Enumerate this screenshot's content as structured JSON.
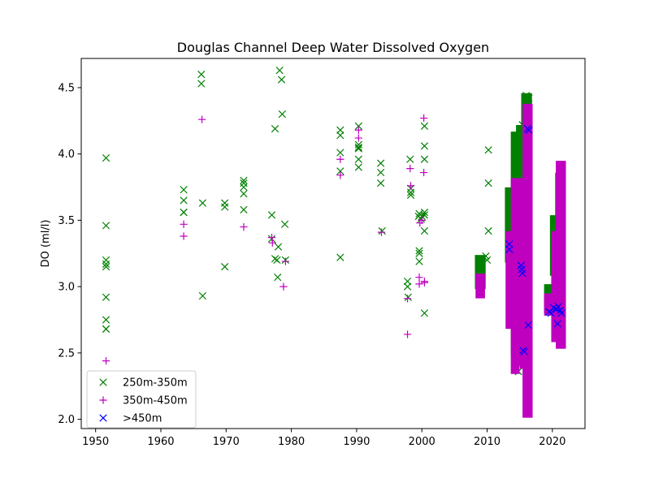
{
  "chart_data": {
    "type": "scatter",
    "title": "Douglas Channel Deep Water Dissolved Oxygen",
    "xlabel": "",
    "ylabel": "DO (ml/l)",
    "xlim": [
      1947.8,
      2025.0
    ],
    "ylim": [
      1.93,
      4.72
    ],
    "xticks": [
      1950,
      1960,
      1970,
      1980,
      1990,
      2000,
      2010,
      2020
    ],
    "yticks": [
      2.0,
      2.5,
      3.0,
      3.5,
      4.0,
      4.5
    ],
    "grid": false,
    "legend_position": "lower-left",
    "series": [
      {
        "name": "250m-350m",
        "marker": "x",
        "color": "#008000",
        "points": [
          [
            1951.6,
            3.97
          ],
          [
            1951.6,
            3.46
          ],
          [
            1951.6,
            3.2
          ],
          [
            1951.6,
            3.17
          ],
          [
            1951.6,
            3.15
          ],
          [
            1951.6,
            2.92
          ],
          [
            1951.6,
            2.75
          ],
          [
            1951.6,
            2.68
          ],
          [
            1951.6,
            2.68
          ],
          [
            1963.5,
            3.73
          ],
          [
            1963.5,
            3.65
          ],
          [
            1963.5,
            3.56
          ],
          [
            1963.5,
            3.56
          ],
          [
            1966.2,
            4.6
          ],
          [
            1966.2,
            4.53
          ],
          [
            1966.4,
            3.63
          ],
          [
            1966.4,
            2.93
          ],
          [
            1969.8,
            3.63
          ],
          [
            1969.8,
            3.6
          ],
          [
            1969.8,
            3.15
          ],
          [
            1972.7,
            3.8
          ],
          [
            1972.7,
            3.78
          ],
          [
            1972.7,
            3.75
          ],
          [
            1972.7,
            3.7
          ],
          [
            1972.7,
            3.58
          ],
          [
            1977.0,
            3.54
          ],
          [
            1977.0,
            3.36
          ],
          [
            1977.5,
            4.19
          ],
          [
            1977.5,
            3.21
          ],
          [
            1977.8,
            3.2
          ],
          [
            1977.9,
            3.07
          ],
          [
            1978.0,
            3.3
          ],
          [
            1978.2,
            4.63
          ],
          [
            1978.5,
            4.56
          ],
          [
            1978.6,
            4.3
          ],
          [
            1979.0,
            3.47
          ],
          [
            1979.1,
            3.2
          ],
          [
            1987.5,
            4.18
          ],
          [
            1987.5,
            4.14
          ],
          [
            1987.5,
            4.01
          ],
          [
            1987.5,
            3.87
          ],
          [
            1987.5,
            3.22
          ],
          [
            1990.3,
            4.21
          ],
          [
            1990.3,
            4.07
          ],
          [
            1990.3,
            4.05
          ],
          [
            1990.3,
            4.04
          ],
          [
            1990.3,
            3.96
          ],
          [
            1990.3,
            3.9
          ],
          [
            1993.7,
            3.93
          ],
          [
            1993.7,
            3.86
          ],
          [
            1993.7,
            3.78
          ],
          [
            1993.9,
            3.42
          ],
          [
            1997.8,
            3.04
          ],
          [
            1997.8,
            3.0
          ],
          [
            1997.9,
            2.92
          ],
          [
            1998.2,
            3.96
          ],
          [
            1998.3,
            3.74
          ],
          [
            1998.3,
            3.71
          ],
          [
            1998.3,
            3.69
          ],
          [
            1999.5,
            3.53
          ],
          [
            1999.6,
            3.55
          ],
          [
            1999.6,
            3.27
          ],
          [
            1999.6,
            3.25
          ],
          [
            1999.6,
            3.19
          ],
          [
            1999.9,
            3.51
          ],
          [
            2000.0,
            3.53
          ],
          [
            2000.4,
            3.56
          ],
          [
            2000.4,
            3.54
          ],
          [
            2000.4,
            4.21
          ],
          [
            2000.4,
            4.06
          ],
          [
            2000.4,
            3.96
          ],
          [
            2000.4,
            3.42
          ],
          [
            2000.4,
            2.8
          ],
          [
            2010.2,
            4.03
          ],
          [
            2010.2,
            3.78
          ],
          [
            2010.2,
            3.42
          ],
          [
            2009.8,
            3.23
          ],
          [
            2010.0,
            3.2
          ],
          [
            2015.0,
            4.15
          ],
          [
            2015.4,
            4.22
          ],
          [
            2016.0,
            4.44
          ],
          [
            2016.4,
            4.42
          ],
          [
            2014.8,
            2.36
          ],
          [
            2021.5,
            3.84
          ],
          [
            2021.2,
            3.55
          ]
        ],
        "ranges": [
          {
            "x": [
              2008.5,
              2009.4
            ],
            "y": [
              3.0,
              3.22
            ]
          },
          {
            "x": [
              2013.1,
              2013.7
            ],
            "y": [
              3.2,
              3.73
            ]
          },
          {
            "x": [
              2014.0,
              2014.7
            ],
            "y": [
              2.5,
              4.15
            ]
          },
          {
            "x": [
              2014.8,
              2015.4
            ],
            "y": [
              2.56,
              4.2
            ]
          },
          {
            "x": [
              2015.6,
              2016.5
            ],
            "y": [
              2.6,
              4.44
            ]
          },
          {
            "x": [
              2019.1,
              2019.9
            ],
            "y": [
              2.82,
              3.0
            ]
          },
          {
            "x": [
              2020.0,
              2020.7
            ],
            "y": [
              3.1,
              3.52
            ]
          },
          {
            "x": [
              2020.8,
              2021.7
            ],
            "y": [
              2.68,
              3.84
            ]
          }
        ]
      },
      {
        "name": "350m-450m",
        "marker": "+",
        "color": "#bf00bf",
        "points": [
          [
            1951.6,
            2.44
          ],
          [
            1963.5,
            3.47
          ],
          [
            1963.5,
            3.38
          ],
          [
            1966.3,
            4.26
          ],
          [
            1972.7,
            3.45
          ],
          [
            1977.0,
            3.37
          ],
          [
            1977.1,
            3.33
          ],
          [
            1978.8,
            3.0
          ],
          [
            1979.1,
            3.19
          ],
          [
            1987.5,
            3.96
          ],
          [
            1987.5,
            3.84
          ],
          [
            1990.3,
            4.18
          ],
          [
            1990.3,
            4.12
          ],
          [
            1993.8,
            3.41
          ],
          [
            1997.8,
            2.64
          ],
          [
            1997.8,
            2.91
          ],
          [
            1998.2,
            3.89
          ],
          [
            1998.3,
            3.76
          ],
          [
            1999.6,
            3.07
          ],
          [
            1999.6,
            3.02
          ],
          [
            1999.7,
            3.48
          ],
          [
            2000.3,
            4.27
          ],
          [
            2000.3,
            3.86
          ],
          [
            2000.4,
            3.04
          ],
          [
            2000.4,
            3.03
          ],
          [
            2000.0,
            3.5
          ]
        ],
        "ranges": [
          {
            "x": [
              2008.6,
              2009.3
            ],
            "y": [
              2.93,
              3.08
            ]
          },
          {
            "x": [
              2013.2,
              2014.0
            ],
            "y": [
              2.7,
              3.4
            ]
          },
          {
            "x": [
              2014.0,
              2014.6
            ],
            "y": [
              2.36,
              3.8
            ]
          },
          {
            "x": [
              2014.8,
              2015.3
            ],
            "y": [
              2.42,
              3.6
            ]
          },
          {
            "x": [
              2015.4,
              2016.0
            ],
            "y": [
              2.4,
              3.8
            ]
          },
          {
            "x": [
              2015.8,
              2016.6
            ],
            "y": [
              2.03,
              4.36
            ]
          },
          {
            "x": [
              2019.1,
              2019.9
            ],
            "y": [
              2.8,
              2.93
            ]
          },
          {
            "x": [
              2020.2,
              2021.0
            ],
            "y": [
              2.6,
              3.4
            ]
          },
          {
            "x": [
              2020.9,
              2021.7
            ],
            "y": [
              2.55,
              3.93
            ]
          }
        ]
      },
      {
        "name": ">450m",
        "marker": "x",
        "color": "#0000ff",
        "points": [
          [
            2013.4,
            3.32
          ],
          [
            2013.4,
            3.28
          ],
          [
            2015.2,
            3.16
          ],
          [
            2015.3,
            3.13
          ],
          [
            2015.4,
            3.1
          ],
          [
            2015.5,
            2.52
          ],
          [
            2015.7,
            2.51
          ],
          [
            2016.2,
            4.19
          ],
          [
            2016.4,
            4.18
          ],
          [
            2016.3,
            2.71
          ],
          [
            2019.5,
            2.81
          ],
          [
            2019.8,
            2.8
          ],
          [
            2020.2,
            2.84
          ],
          [
            2020.6,
            2.83
          ],
          [
            2020.9,
            2.85
          ],
          [
            2021.2,
            2.82
          ],
          [
            2020.8,
            2.72
          ],
          [
            2021.4,
            2.8
          ]
        ],
        "ranges": []
      }
    ]
  }
}
